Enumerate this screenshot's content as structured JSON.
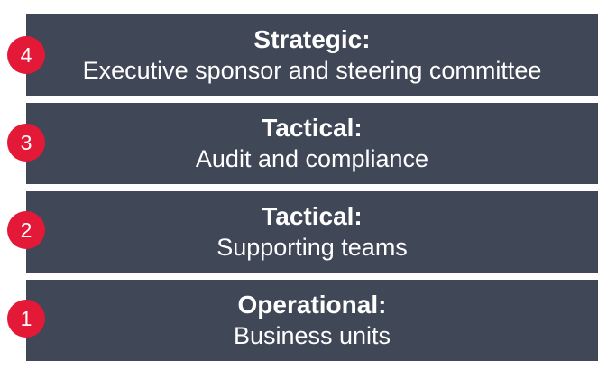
{
  "colors": {
    "tier_background": "#404756",
    "badge_background": "#e31937",
    "text": "#ffffff"
  },
  "tiers": [
    {
      "number": "4",
      "title": "Strategic:",
      "description": "Executive sponsor and steering committee"
    },
    {
      "number": "3",
      "title": "Tactical:",
      "description": "Audit and compliance"
    },
    {
      "number": "2",
      "title": "Tactical:",
      "description": "Supporting teams"
    },
    {
      "number": "1",
      "title": "Operational:",
      "description": "Business units"
    }
  ]
}
